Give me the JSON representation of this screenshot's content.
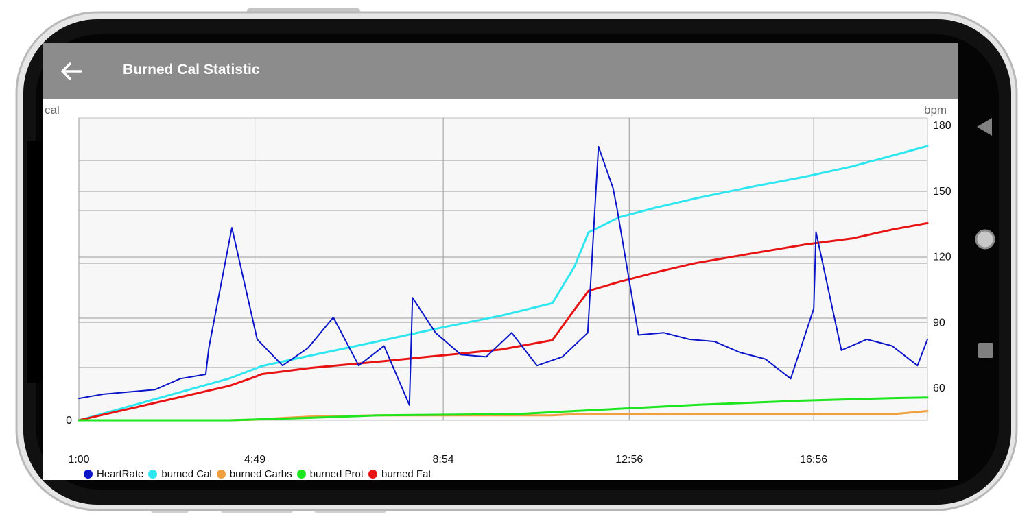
{
  "app": {
    "title": "Burned Cal Statistic",
    "back_icon": "arrow-left-icon"
  },
  "nav_icons": [
    "back-triangle-icon",
    "home-circle-icon",
    "recents-square-icon"
  ],
  "colors": {
    "appbar": "#8c8c8c",
    "heartrate": "#0a14c8",
    "burned_cal": "#2ee6f0",
    "burned_carbs": "#f0a040",
    "burned_prot": "#1ee61e",
    "burned_fat": "#e81414"
  },
  "chart_data": {
    "type": "line",
    "left_unit": "cal",
    "right_unit": "bpm",
    "left_ticks": [
      "0"
    ],
    "right_ticks": [
      "60",
      "90",
      "120",
      "150",
      "180"
    ],
    "x_ticks": [
      "1:00",
      "4:49",
      "8:54",
      "12:56",
      "16:56"
    ],
    "x_range_min": [
      60,
      1164
    ],
    "y_right_range": [
      45,
      180
    ],
    "legend": [
      "HeartRate",
      "burned Cal",
      "burned Carbs",
      "burned Prot",
      "burned Fat"
    ],
    "series": [
      {
        "name": "HeartRate",
        "color": "#0a14c8",
        "axis": "right",
        "x_min": [
          60,
          93,
          126,
          159,
          192,
          225,
          229,
          259,
          292,
          325,
          358,
          391,
          424,
          457,
          490,
          494,
          524,
          557,
          590,
          623,
          656,
          689,
          722,
          736,
          755,
          760,
          788,
          821,
          854,
          887,
          920,
          953,
          986,
          1016,
          1019,
          1052,
          1085,
          1118,
          1151,
          1164
        ],
        "values": [
          55,
          57,
          58,
          59,
          64,
          66,
          78,
          133,
          82,
          70,
          78,
          92,
          70,
          79,
          52,
          101,
          85,
          75,
          74,
          85,
          70,
          74,
          85,
          170,
          151,
          142,
          84,
          85,
          82,
          81,
          76,
          73,
          64,
          96,
          131,
          77,
          82,
          79,
          70,
          82
        ]
      },
      {
        "name": "burned Cal",
        "color": "#2ee6f0",
        "axis": "left",
        "x_min": [
          60,
          256,
          298,
          361,
          449,
          530,
          610,
          676,
          705,
          723,
          764,
          810,
          862,
          932,
          1004,
          1066,
          1120,
          1164
        ],
        "values": [
          0,
          68,
          88,
          105,
          128,
          150,
          170,
          190,
          250,
          305,
          330,
          345,
          360,
          378,
          395,
          412,
          430,
          445
        ]
      },
      {
        "name": "burned Carbs",
        "color": "#f0a040",
        "axis": "left",
        "x_min": [
          60,
          256,
          288,
          330,
          361,
          449,
          530,
          630,
          676,
          705,
          1066,
          1120,
          1164
        ],
        "values": [
          0,
          0,
          1,
          4,
          6,
          8,
          8,
          8,
          8,
          10,
          10,
          10,
          15
        ]
      },
      {
        "name": "burned Prot",
        "color": "#1ee61e",
        "axis": "left",
        "x_min": [
          60,
          256,
          361,
          449,
          630,
          705,
          862,
          1004,
          1120,
          1164
        ],
        "values": [
          0,
          0,
          4,
          8,
          10,
          15,
          25,
          32,
          36,
          37
        ]
      },
      {
        "name": "burned Fat",
        "color": "#e81414",
        "axis": "left",
        "x_min": [
          60,
          256,
          288,
          298,
          361,
          449,
          530,
          610,
          676,
          705,
          723,
          764,
          810,
          862,
          932,
          1004,
          1066,
          1120,
          1164
        ],
        "values": [
          0,
          56,
          70,
          75,
          85,
          95,
          105,
          115,
          130,
          180,
          210,
          225,
          240,
          255,
          270,
          285,
          295,
          310,
          320
        ]
      }
    ]
  }
}
